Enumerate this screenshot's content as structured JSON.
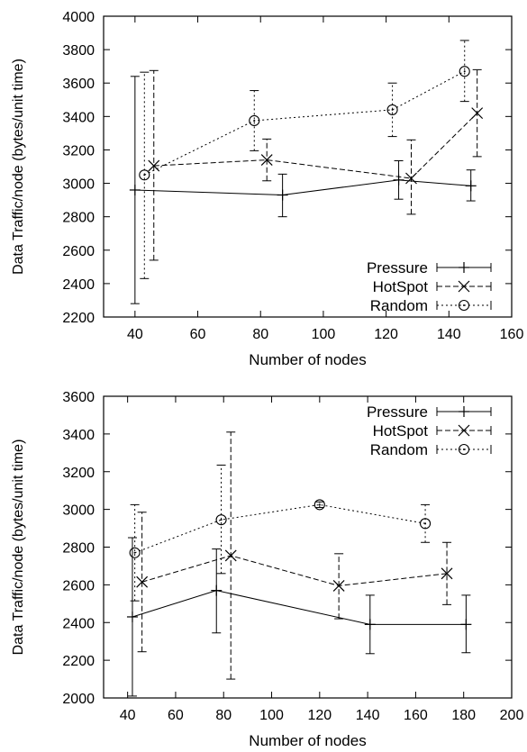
{
  "chart_data": [
    {
      "type": "line",
      "title": "",
      "xlabel": "Number of nodes",
      "ylabel": "Data Traffic/node (bytes/unit time)",
      "xlim": [
        30,
        160
      ],
      "ylim": [
        2200,
        4000
      ],
      "xticks": [
        40,
        60,
        80,
        100,
        120,
        140,
        160
      ],
      "yticks": [
        2200,
        2400,
        2600,
        2800,
        3000,
        3200,
        3400,
        3600,
        3800,
        4000
      ],
      "grid": false,
      "legend_position": "bottom-right",
      "series": [
        {
          "name": "Pressure",
          "marker": "plus",
          "dash": "solid",
          "points": [
            {
              "x": 40,
              "y": 2960,
              "low": 2280,
              "high": 3640
            },
            {
              "x": 87,
              "y": 2930,
              "low": 2800,
              "high": 3055
            },
            {
              "x": 124,
              "y": 3020,
              "low": 2905,
              "high": 3135
            },
            {
              "x": 147,
              "y": 2985,
              "low": 2895,
              "high": 3080
            }
          ]
        },
        {
          "name": "HotSpot",
          "marker": "cross",
          "dash": "dashed",
          "points": [
            {
              "x": 46,
              "y": 3105,
              "low": 2540,
              "high": 3675
            },
            {
              "x": 82,
              "y": 3140,
              "low": 3015,
              "high": 3265
            },
            {
              "x": 128,
              "y": 3030,
              "low": 2815,
              "high": 3260
            },
            {
              "x": 149,
              "y": 3420,
              "low": 3160,
              "high": 3680
            }
          ]
        },
        {
          "name": "Random",
          "marker": "circle",
          "dash": "dotted",
          "points": [
            {
              "x": 43,
              "y": 3050,
              "low": 2430,
              "high": 3665
            },
            {
              "x": 78,
              "y": 3375,
              "low": 3195,
              "high": 3555
            },
            {
              "x": 122,
              "y": 3440,
              "low": 3280,
              "high": 3600
            },
            {
              "x": 145,
              "y": 3670,
              "low": 3490,
              "high": 3855
            }
          ]
        }
      ]
    },
    {
      "type": "line",
      "title": "",
      "xlabel": "Number of nodes",
      "ylabel": "Data Traffic/node (bytes/unit time)",
      "xlim": [
        30,
        200
      ],
      "ylim": [
        2000,
        3600
      ],
      "xticks": [
        40,
        60,
        80,
        100,
        120,
        140,
        160,
        180,
        200
      ],
      "yticks": [
        2000,
        2200,
        2400,
        2600,
        2800,
        3000,
        3200,
        3400,
        3600
      ],
      "grid": false,
      "legend_position": "top-right",
      "series": [
        {
          "name": "Pressure",
          "marker": "plus",
          "dash": "solid",
          "points": [
            {
              "x": 42,
              "y": 2430,
              "low": 2010,
              "high": 2850
            },
            {
              "x": 77,
              "y": 2570,
              "low": 2345,
              "high": 2790
            },
            {
              "x": 141,
              "y": 2390,
              "low": 2235,
              "high": 2545
            },
            {
              "x": 181,
              "y": 2390,
              "low": 2240,
              "high": 2545
            }
          ]
        },
        {
          "name": "HotSpot",
          "marker": "cross",
          "dash": "dashed",
          "points": [
            {
              "x": 46,
              "y": 2615,
              "low": 2245,
              "high": 2985
            },
            {
              "x": 83,
              "y": 2755,
              "low": 2100,
              "high": 3410
            },
            {
              "x": 128,
              "y": 2595,
              "low": 2420,
              "high": 2765
            },
            {
              "x": 173,
              "y": 2660,
              "low": 2495,
              "high": 2825
            }
          ]
        },
        {
          "name": "Random",
          "marker": "circle",
          "dash": "dotted",
          "points": [
            {
              "x": 43,
              "y": 2770,
              "low": 2515,
              "high": 3025
            },
            {
              "x": 79,
              "y": 2945,
              "low": 2660,
              "high": 3235
            },
            {
              "x": 120,
              "y": 3025,
              "low": 3010,
              "high": 3040
            },
            {
              "x": 164,
              "y": 2925,
              "low": 2825,
              "high": 3025
            }
          ]
        }
      ]
    }
  ]
}
